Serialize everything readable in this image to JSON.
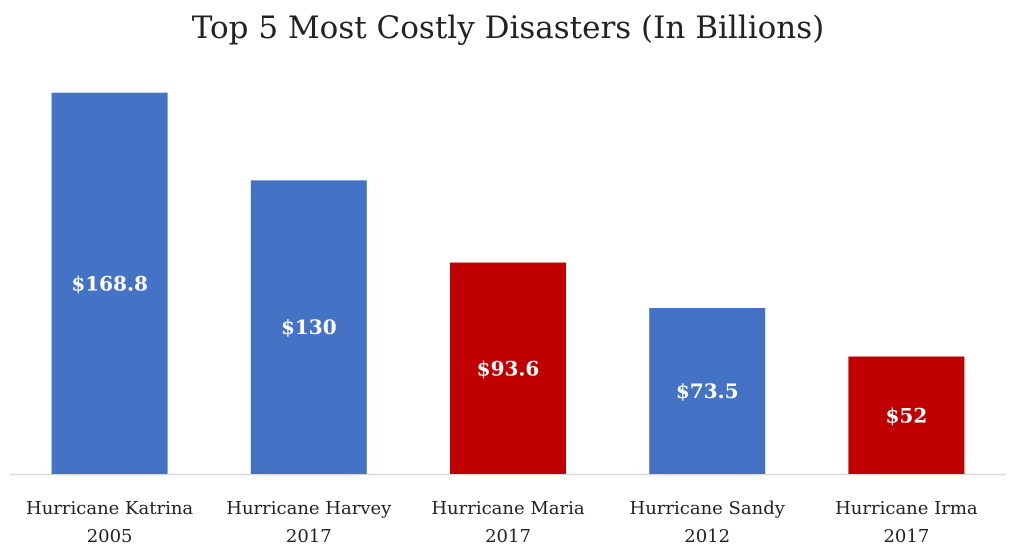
{
  "chart_data": {
    "type": "bar",
    "title": "Top 5 Most Costly Disasters (In Billions)",
    "categories": [
      [
        "Hurricane Katrina",
        "2005"
      ],
      [
        "Hurricane Harvey",
        "2017"
      ],
      [
        "Hurricane Maria",
        "2017"
      ],
      [
        "Hurricane Sandy",
        "2012"
      ],
      [
        "Hurricane Irma",
        "2017"
      ]
    ],
    "values": [
      168.8,
      130,
      93.6,
      73.5,
      52
    ],
    "data_labels": [
      "$168.8",
      "$130",
      "$93.6",
      "$73.5",
      "$52"
    ],
    "bar_colors": [
      "#4472c4",
      "#4472c4",
      "#c00000",
      "#4472c4",
      "#c00000"
    ],
    "xlabel": "",
    "ylabel": "",
    "ylim": [
      0,
      170
    ],
    "grid": false,
    "legend": "none"
  },
  "colors": {
    "baseline": "#d9d9d9",
    "label_text": "#ffffff",
    "axis_text": "#222222"
  }
}
